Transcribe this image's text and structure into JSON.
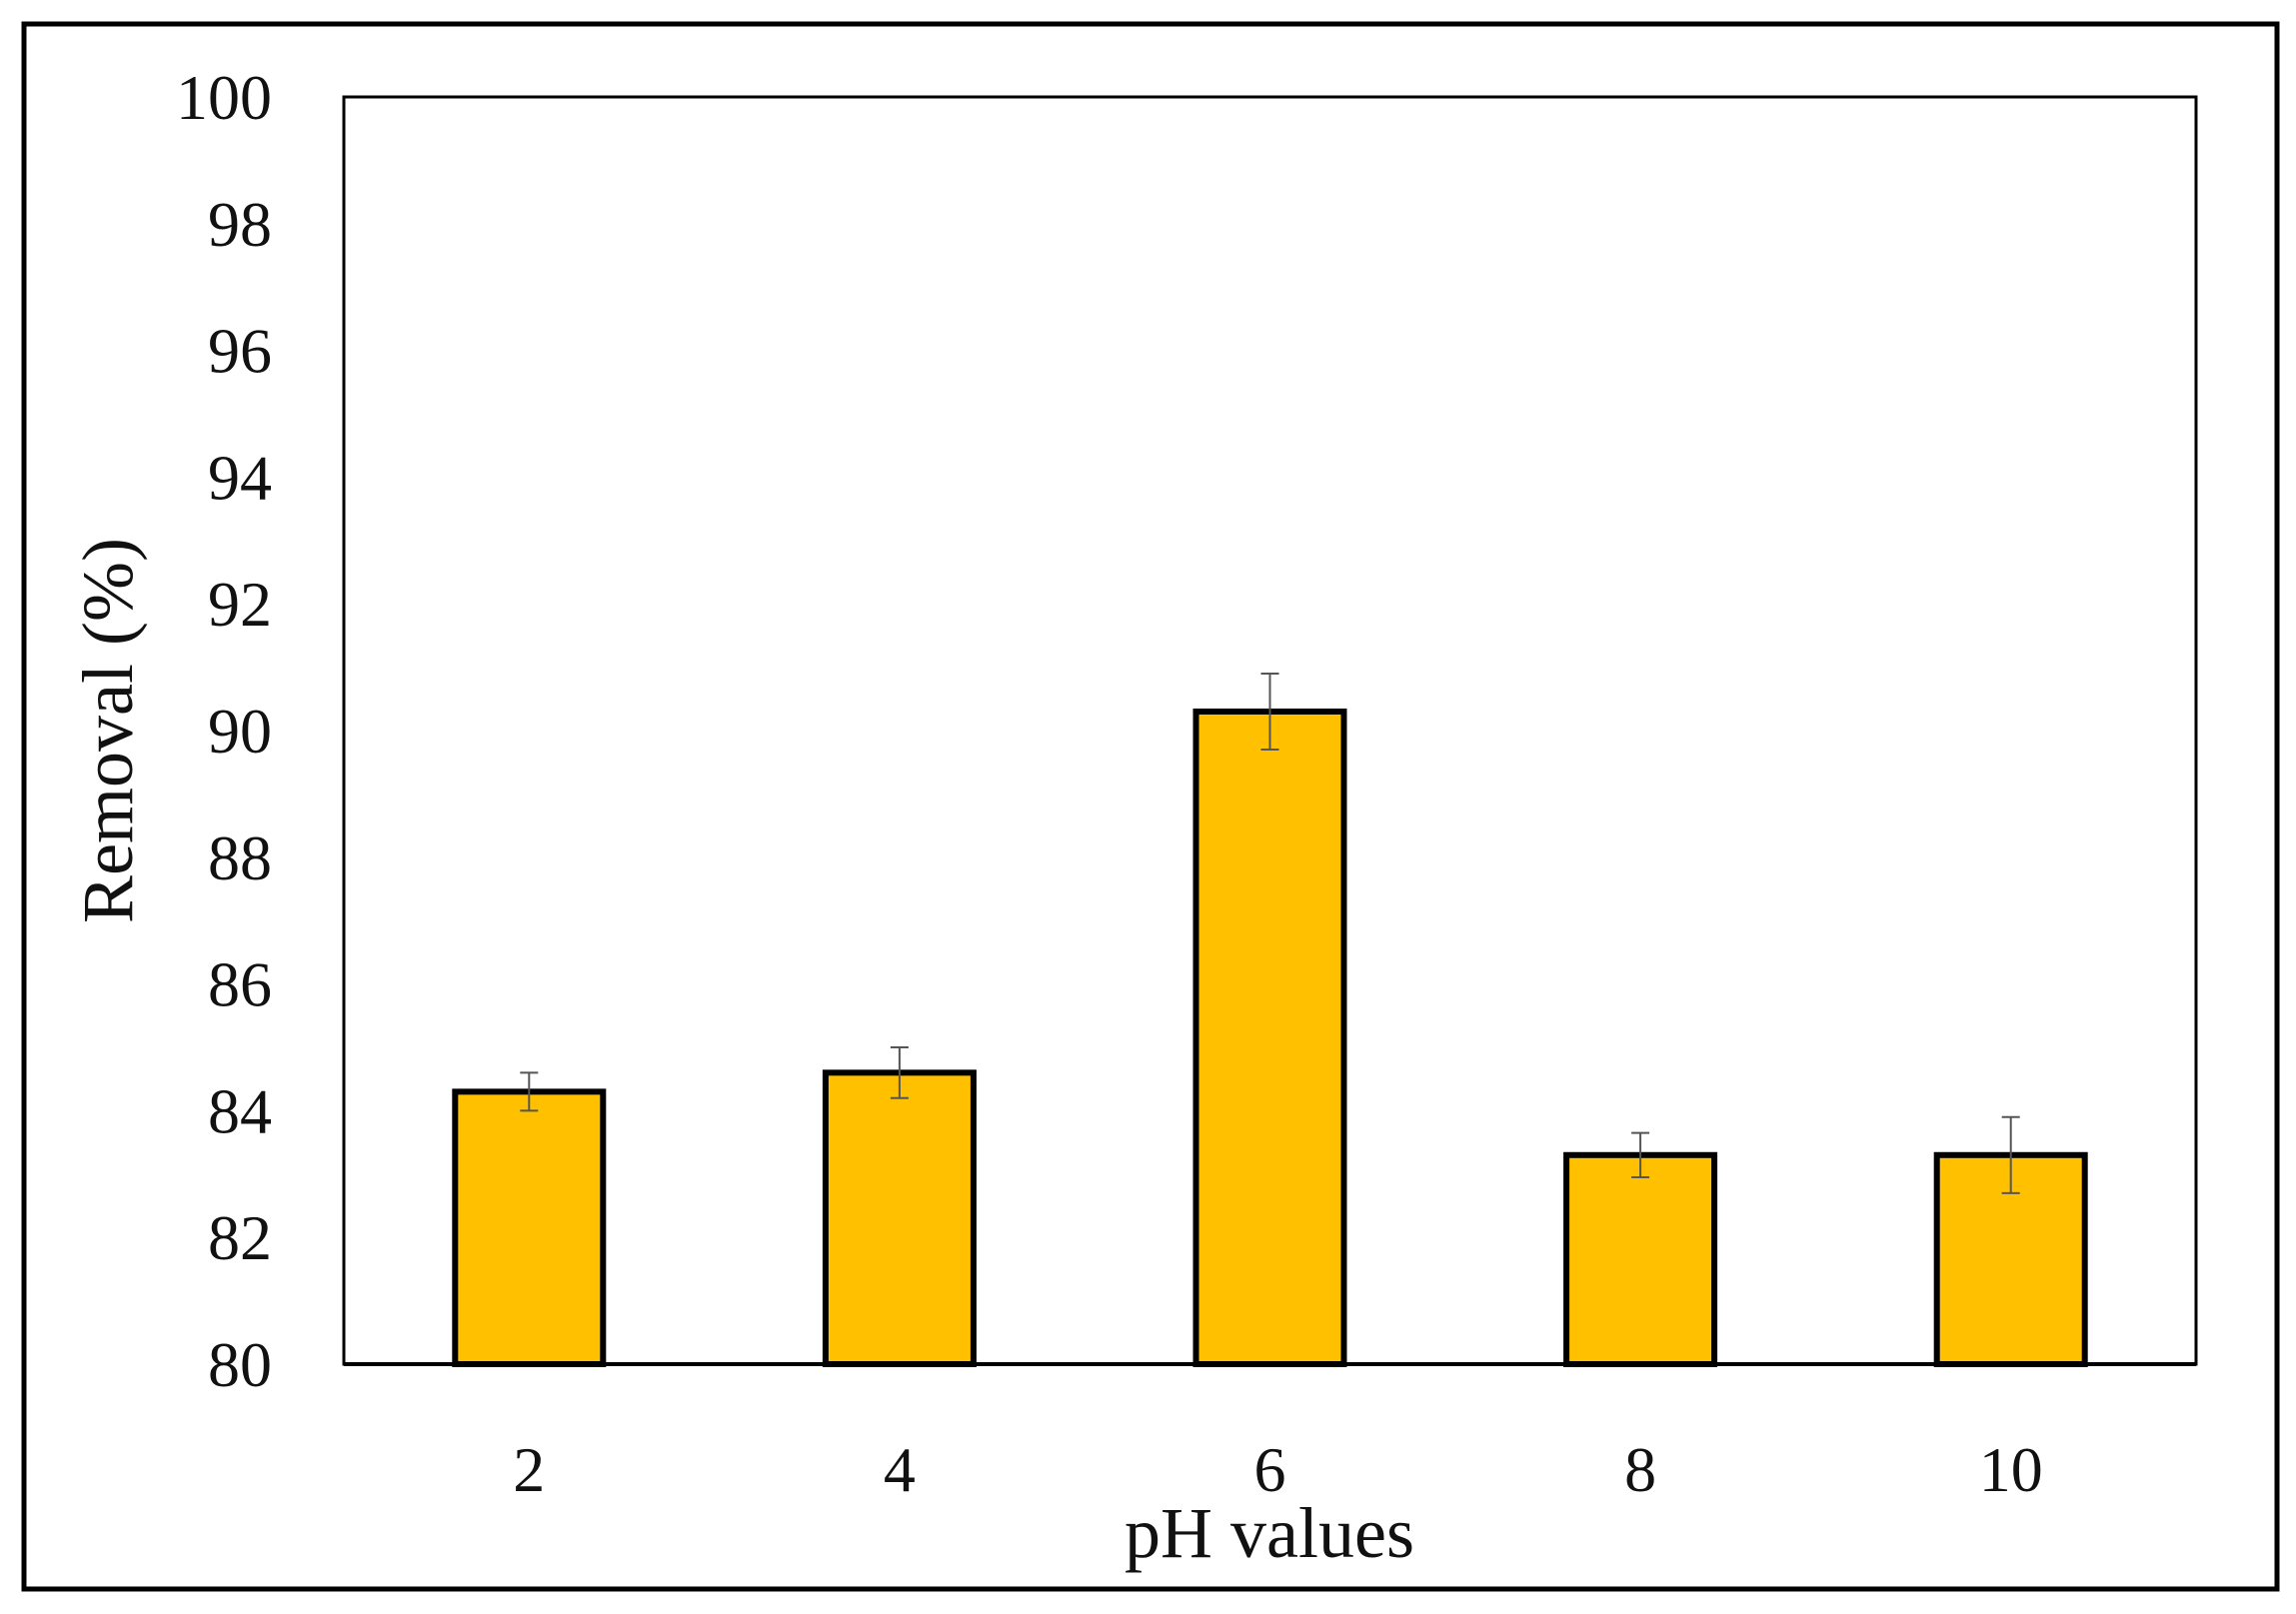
{
  "chart_data": {
    "type": "bar",
    "title": "",
    "xlabel": "pH values",
    "ylabel": "Removal (%)",
    "categories": [
      "2",
      "4",
      "6",
      "8",
      "10"
    ],
    "values": [
      84.3,
      84.6,
      90.3,
      83.3,
      83.3
    ],
    "error": [
      0.3,
      0.4,
      0.6,
      0.35,
      0.6
    ],
    "ylim": [
      80,
      100
    ],
    "yticks": [
      "80",
      "82",
      "84",
      "86",
      "88",
      "90",
      "92",
      "94",
      "96",
      "98",
      "100"
    ],
    "grid": false,
    "legend": "none",
    "colors": {
      "bar_fill": "#FFC000",
      "bar_stroke": "#000000",
      "error_bar": "#555555",
      "axis": "#000000",
      "frame": "#000000"
    }
  }
}
